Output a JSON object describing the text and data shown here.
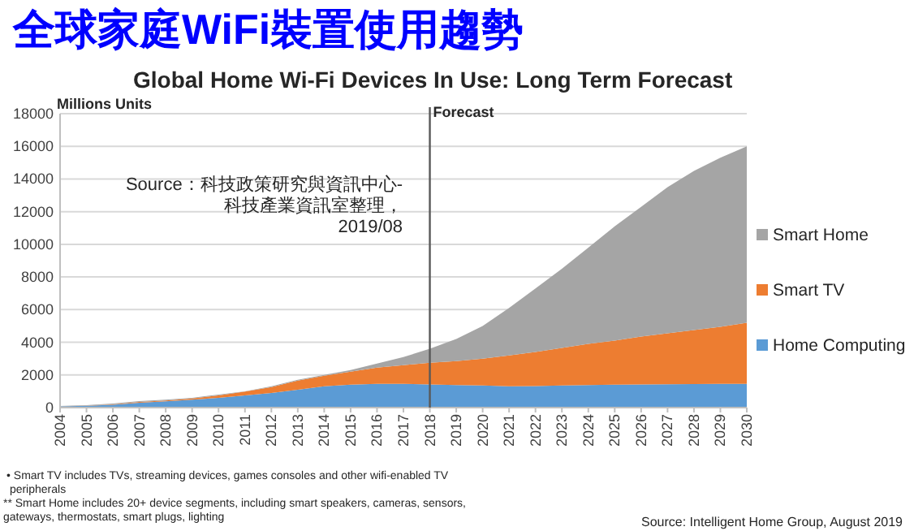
{
  "chart_data": {
    "type": "area",
    "stacked": true,
    "title": "全球家庭WiFi裝置使用趨勢",
    "subtitle": "Global Home Wi-Fi Devices In Use: Long Term Forecast",
    "ylabel": "Millions Units",
    "categories": [
      "2004",
      "2005",
      "2006",
      "2007",
      "2008",
      "2009",
      "2010",
      "2011",
      "2012",
      "2013",
      "2014",
      "2015",
      "2016",
      "2017",
      "2018",
      "2019",
      "2020",
      "2021",
      "2022",
      "2023",
      "2024",
      "2025",
      "2026",
      "2027",
      "2028",
      "2029",
      "2030"
    ],
    "series": [
      {
        "name": "Home Computing",
        "color": "#5b9bd5",
        "values": [
          70,
          110,
          180,
          300,
          380,
          480,
          600,
          750,
          900,
          1100,
          1300,
          1400,
          1450,
          1450,
          1420,
          1380,
          1350,
          1300,
          1320,
          1350,
          1380,
          1400,
          1420,
          1430,
          1440,
          1450,
          1450
        ]
      },
      {
        "name": "Smart TV",
        "color": "#ed7d31",
        "values": [
          10,
          10,
          20,
          50,
          50,
          80,
          150,
          230,
          350,
          550,
          650,
          800,
          1000,
          1150,
          1330,
          1470,
          1650,
          1900,
          2080,
          2300,
          2520,
          2700,
          2930,
          3120,
          3310,
          3500,
          3750
        ]
      },
      {
        "name": "Smart Home",
        "color": "#a5a5a5",
        "values": [
          20,
          30,
          50,
          50,
          50,
          40,
          50,
          20,
          50,
          50,
          50,
          100,
          250,
          500,
          850,
          1350,
          2000,
          2900,
          3900,
          4850,
          5900,
          7000,
          7950,
          8950,
          9750,
          10350,
          10800
        ]
      }
    ],
    "ylim": [
      0,
      18000
    ],
    "yticks": [
      0,
      2000,
      4000,
      6000,
      8000,
      10000,
      12000,
      14000,
      16000,
      18000
    ],
    "grid": "y",
    "legend": "right",
    "ref_lines": [
      {
        "axis": "x",
        "value": "2018",
        "label": "Forecast",
        "color": "#595959"
      }
    ],
    "annotations": [
      "Source：科技政策研究與資訊中心-\n科技產業資訊室整理，\n2019/08",
      "•   Smart TV includes TVs, streaming devices, games consoles and other wifi-enabled TV\n     peripherals",
      "** Smart Home includes 20+ device segments, including smart speakers, cameras, sensors,\ngateways, thermostats, smart plugs, lighting",
      "Source: Intelligent Home Group, August 2019"
    ]
  }
}
